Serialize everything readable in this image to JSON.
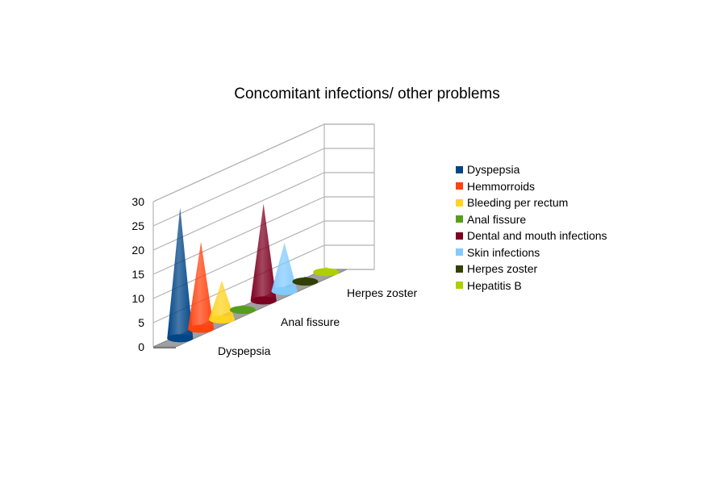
{
  "chart_data": {
    "type": "bar",
    "style": "3d-cone",
    "title": "Concomitant infections/ other problems",
    "series": [
      {
        "name": "Dyspepsia",
        "value": 27,
        "color": "#004586"
      },
      {
        "name": "Hemmorroids",
        "value": 18,
        "color": "#ff420e"
      },
      {
        "name": "Bleeding per rectum",
        "value": 8,
        "color": "#ffd320"
      },
      {
        "name": "Anal fissure",
        "value": 1,
        "color": "#579d1c"
      },
      {
        "name": "Dental and mouth infections",
        "value": 20,
        "color": "#7e0021"
      },
      {
        "name": "Skin infections",
        "value": 10,
        "color": "#83caff"
      },
      {
        "name": "Herpes zoster",
        "value": 1,
        "color": "#314004"
      },
      {
        "name": "Hepatitis B",
        "value": 1,
        "color": "#aecf00"
      }
    ],
    "category_labels": [
      "Dyspepsia",
      "Anal fissure",
      "Herpes zoster"
    ],
    "y_ticks": [
      "0",
      "5",
      "10",
      "15",
      "20",
      "25",
      "30"
    ],
    "ylim": [
      0,
      30
    ],
    "grid": true,
    "legend_position": "right"
  }
}
